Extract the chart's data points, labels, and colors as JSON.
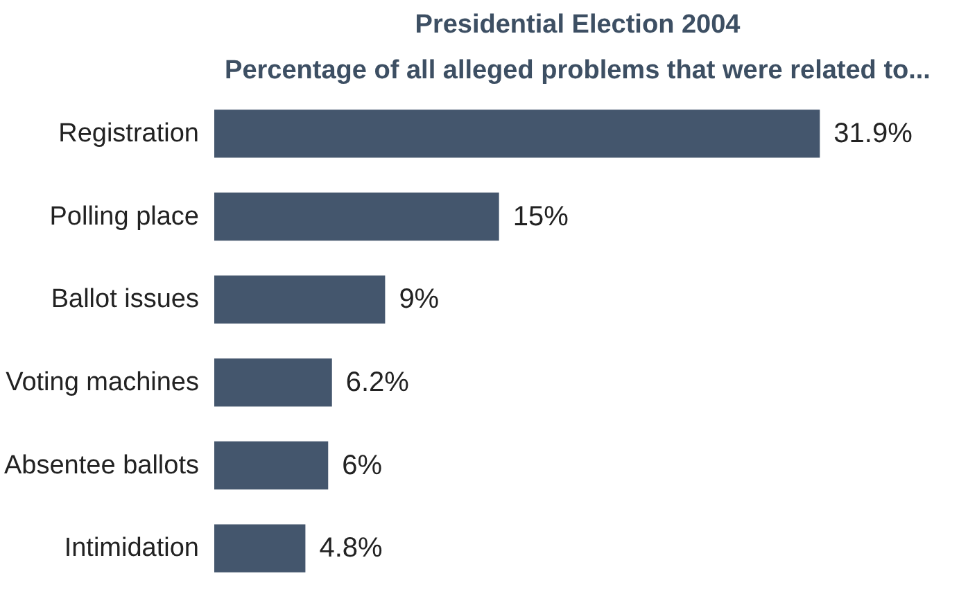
{
  "chart_data": {
    "type": "bar",
    "orientation": "horizontal",
    "title": "Presidential Election 2004",
    "subtitle": "Percentage of all alleged problems that were related to...",
    "categories": [
      "Registration",
      "Polling place",
      "Ballot issues",
      "Voting machines",
      "Absentee ballots",
      "Intimidation"
    ],
    "values": [
      31.9,
      15,
      9,
      6.2,
      6,
      4.8
    ],
    "value_labels": [
      "31.9%",
      "15%",
      "9%",
      "6.2%",
      "6%",
      "4.8%"
    ],
    "color": "#44566d",
    "grid": false,
    "tick_labels": "y"
  }
}
